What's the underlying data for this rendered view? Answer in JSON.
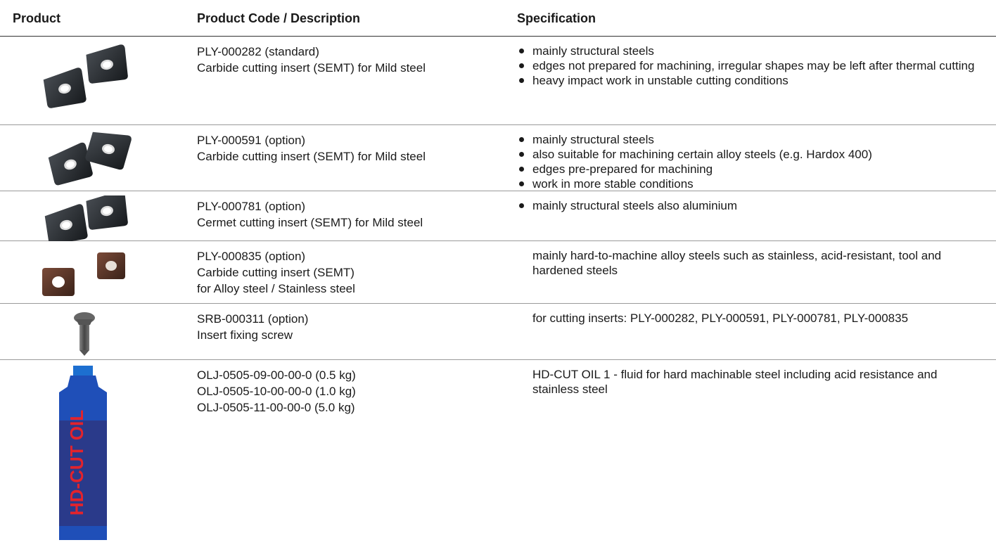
{
  "table": {
    "headers": [
      "Product",
      "Product Code / Description",
      "Specification"
    ],
    "rows": [
      {
        "code": [
          "PLY-000282 (standard)",
          "Carbide cutting insert (SEMT) for Mild steel"
        ],
        "spec_bullets": [
          "mainly structural steels",
          "edges not prepared for machining, irregular shapes may be left after thermal cutting",
          "heavy impact work in unstable cutting conditions"
        ]
      },
      {
        "code": [
          "PLY-000591 (option)",
          "Carbide cutting insert (SEMT) for Mild steel"
        ],
        "spec_bullets": [
          "mainly structural steels",
          "also suitable for machining certain alloy steels (e.g. Hardox 400)",
          "edges pre-prepared for machining",
          "work in more stable conditions"
        ]
      },
      {
        "code": [
          "PLY-000781 (option)",
          "Cermet cutting insert (SEMT) for Mild steel"
        ],
        "spec_bullets": [
          "mainly structural steels also aluminium"
        ]
      },
      {
        "code": [
          "PLY-000835 (option)",
          "Carbide cutting insert (SEMT)",
          "for Alloy steel / Stainless steel"
        ],
        "spec_text": "mainly hard-to-machine alloy steels such as stainless, acid-resistant, tool and hardened steels"
      },
      {
        "code": [
          "SRB-000311 (option)",
          "Insert fixing screw"
        ],
        "spec_text": "for cutting inserts: PLY-000282, PLY-000591, PLY-000781, PLY-000835"
      },
      {
        "code": [
          "OLJ-0505-09-00-00-0 (0.5 kg)",
          "OLJ-0505-10-00-00-0 (1.0 kg)",
          "OLJ-0505-11-00-00-0 (5.0 kg)"
        ],
        "spec_text": "HD-CUT OIL 1 - fluid for hard machinable steel including acid resistance and stainless steel"
      }
    ]
  }
}
